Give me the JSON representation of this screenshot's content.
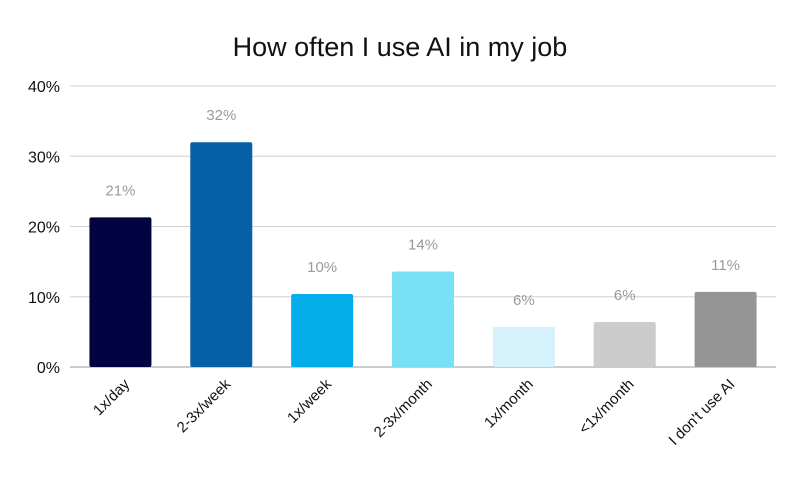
{
  "chart_data": {
    "type": "bar",
    "title": "How often I use AI in my job",
    "xlabel": "",
    "ylabel": "",
    "ylim": [
      0,
      40
    ],
    "yticks": [
      "0%",
      "10%",
      "20%",
      "30%",
      "40%"
    ],
    "grid": true,
    "legend": "none",
    "categories": [
      "1x/day",
      "2-3x/week",
      "1x/week",
      "2-3x/month",
      "1x/month",
      "<1x/month",
      "I don't use AI"
    ],
    "values": [
      21.3,
      32.0,
      10.4,
      13.6,
      5.7,
      6.4,
      10.7
    ],
    "data_labels": [
      "21%",
      "32%",
      "10%",
      "14%",
      "6%",
      "6%",
      "11%"
    ],
    "colors": [
      "#020442",
      "#0560a5",
      "#03adea",
      "#79e1f6",
      "#d4f1fc",
      "#cccccc",
      "#959595"
    ],
    "data_label_color": "#9a9a9a"
  }
}
